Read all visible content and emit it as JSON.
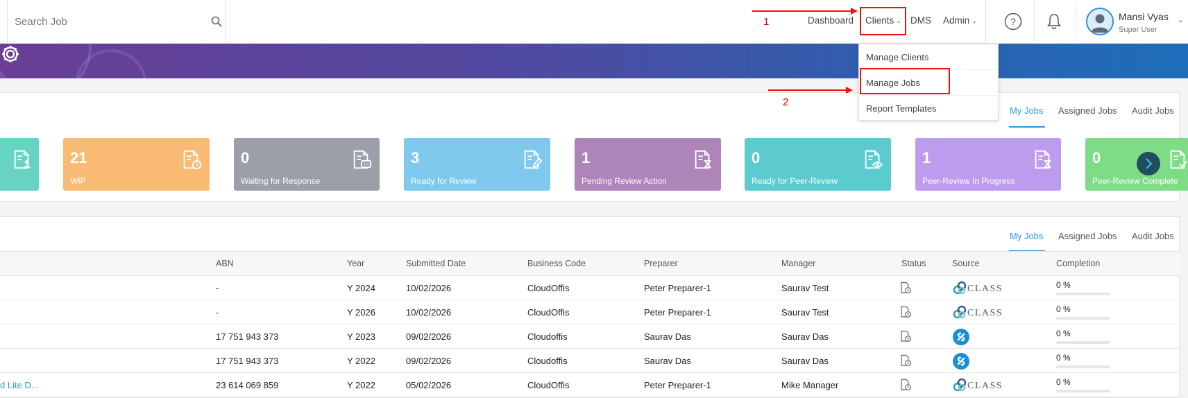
{
  "search": {
    "placeholder": "Search Job"
  },
  "nav": {
    "dashboard": "Dashboard",
    "clients": "Clients",
    "dms": "DMS",
    "admin": "Admin"
  },
  "user": {
    "name": "Mansi Vyas",
    "role": "Super User"
  },
  "dropdown": {
    "items": [
      {
        "label": "Manage Clients"
      },
      {
        "label": "Manage Jobs"
      },
      {
        "label": "Report Templates"
      }
    ]
  },
  "tabs": {
    "my_jobs": "My Jobs",
    "assigned_jobs": "Assigned Jobs",
    "audit_jobs": "Audit Jobs"
  },
  "cards": [
    {
      "count": "",
      "label": "",
      "color": "#67d3c2",
      "icon": "user-doc-icon"
    },
    {
      "count": "21",
      "label": "WIP",
      "color": "#f9bb74",
      "icon": "doc-clock-icon"
    },
    {
      "count": "0",
      "label": "Waiting for Response",
      "color": "#9b9fa8",
      "icon": "doc-chat-icon"
    },
    {
      "count": "3",
      "label": "Ready for Review",
      "color": "#7fc9ec",
      "icon": "doc-edit-icon"
    },
    {
      "count": "1",
      "label": "Pending Review Action",
      "color": "#ad85b8",
      "icon": "doc-hourglass-icon"
    },
    {
      "count": "0",
      "label": "Ready for Peer-Review",
      "color": "#5ccbcf",
      "icon": "doc-eye-icon"
    },
    {
      "count": "1",
      "label": "Peer-Review In Progress",
      "color": "#bd9cf0",
      "icon": "doc-hourglass-icon"
    },
    {
      "count": "0",
      "label": "Peer-Review Complete",
      "color": "#7fdc86",
      "icon": "doc-check-icon"
    }
  ],
  "table": {
    "headers": [
      "ABN",
      "Year",
      "Submitted Date",
      "Business Code",
      "Preparer",
      "Manager",
      "Status",
      "Source",
      "Completion"
    ],
    "rows": [
      {
        "name": "",
        "abn": "-",
        "year": "Y 2024",
        "submitted": "10/02/2026",
        "business": "CloudOffis",
        "preparer": "Peter Preparer-1",
        "manager": "Saurav Test",
        "source": "class",
        "completion": "0 %"
      },
      {
        "name": "",
        "abn": "-",
        "year": "Y 2026",
        "submitted": "10/02/2026",
        "business": "CloudOffis",
        "preparer": "Peter Preparer-1",
        "manager": "Saurav Test",
        "source": "class",
        "completion": "0 %"
      },
      {
        "name": "",
        "abn": "17 751 943 373",
        "year": "Y 2023",
        "submitted": "09/02/2026",
        "business": "Cloudoffis",
        "preparer": "Saurav Das",
        "manager": "Saurav Das",
        "source": "logo",
        "completion": "0 %"
      },
      {
        "name": "",
        "abn": "17 751 943 373",
        "year": "Y 2022",
        "submitted": "09/02/2026",
        "business": "Cloudoffis",
        "preparer": "Saurav Das",
        "manager": "Saurav Das",
        "source": "logo",
        "completion": "0 %"
      },
      {
        "name": "d Lite D...",
        "abn": "23 614 069 859",
        "year": "Y 2022",
        "submitted": "05/02/2026",
        "business": "CloudOffis",
        "preparer": "Peter Preparer-1",
        "manager": "Mike Manager",
        "source": "class",
        "completion": "0 %"
      }
    ]
  },
  "source_class_text": "CLASS",
  "annotations": {
    "step1": "1",
    "step2": "2"
  },
  "colors": {
    "accent": "#2a9bd8",
    "highlight": "#e11111"
  }
}
